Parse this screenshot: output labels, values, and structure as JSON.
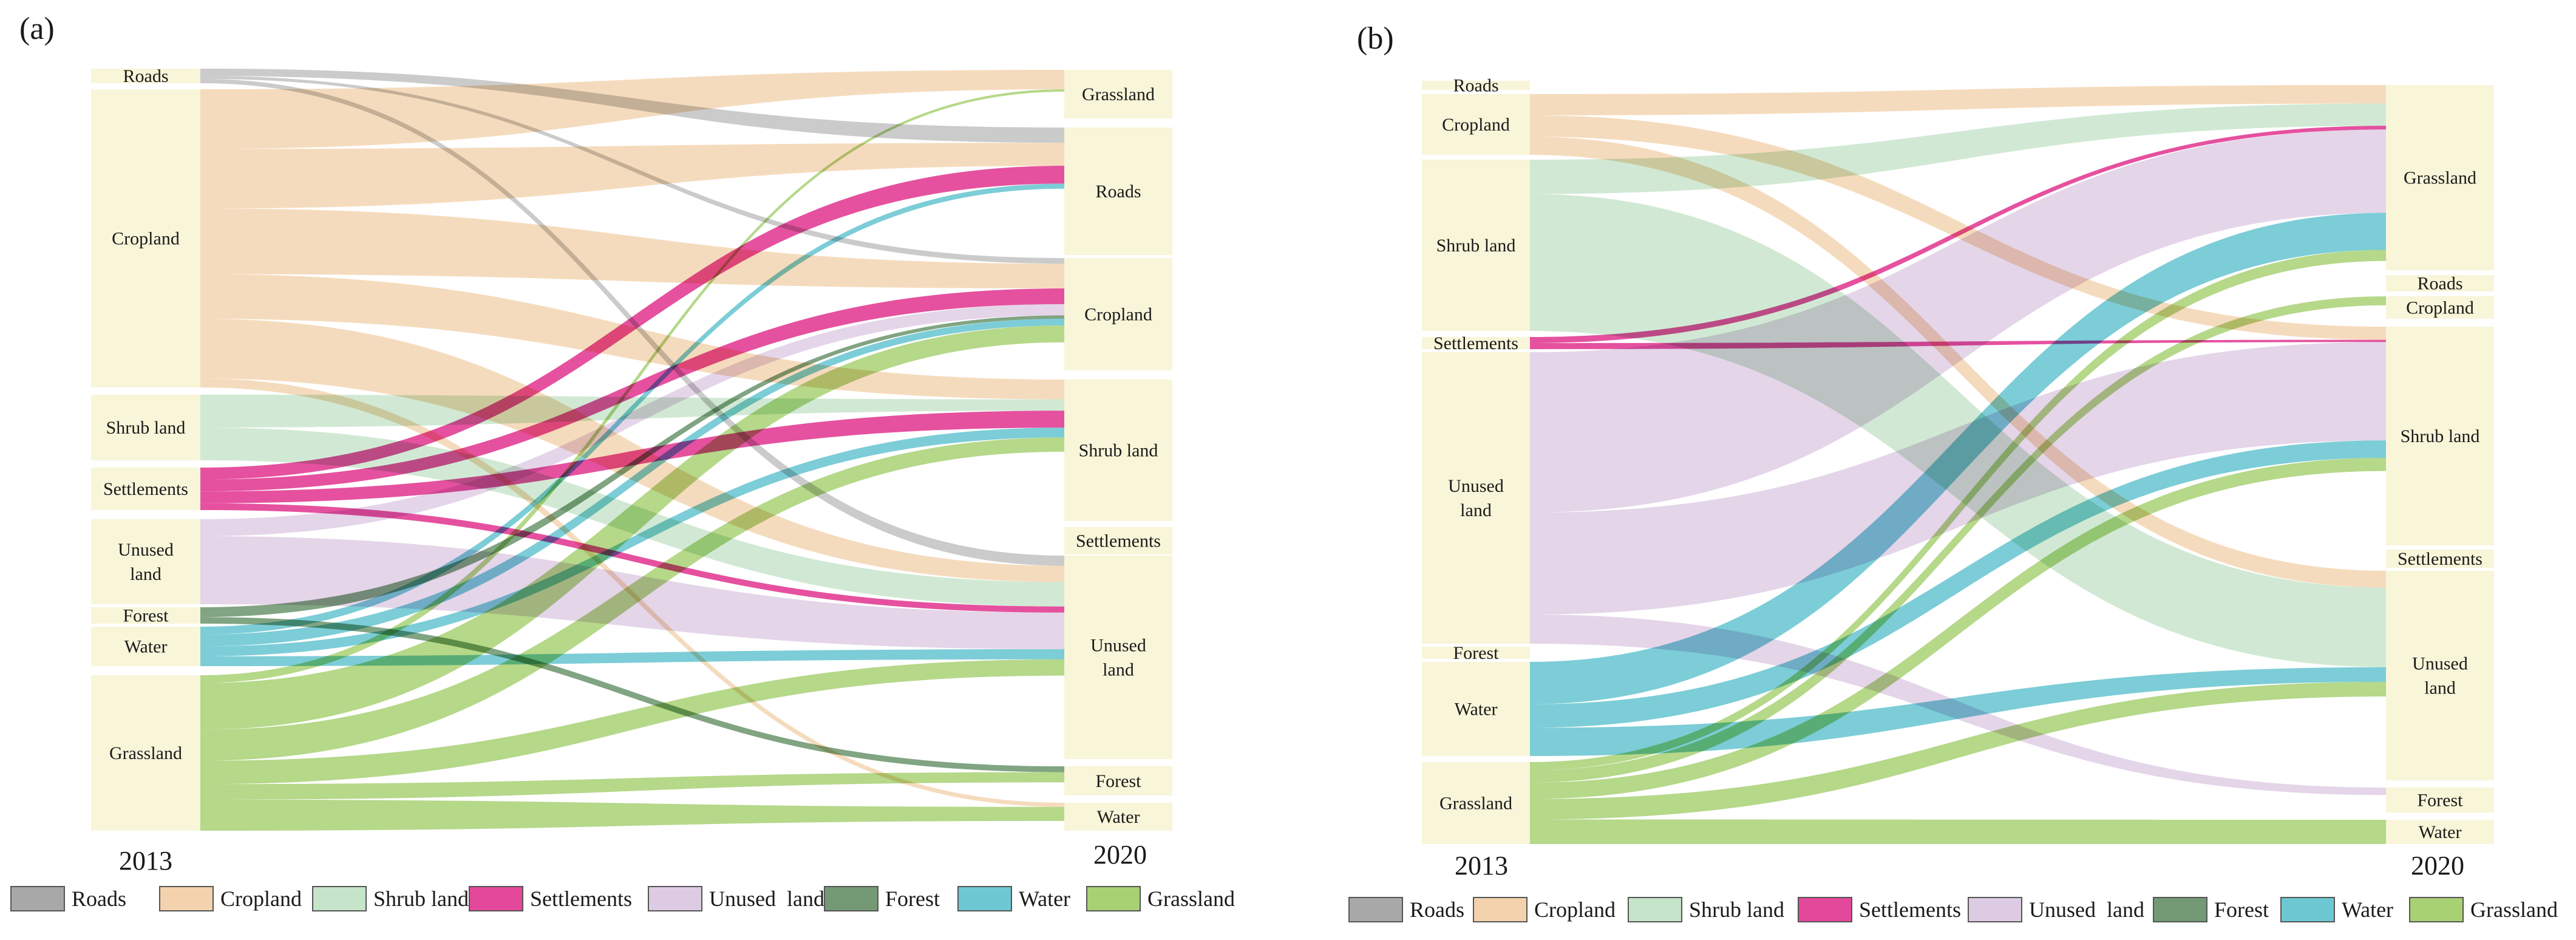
{
  "colors": {
    "Roads": "#a8a8a8",
    "Cropland": "#f3d2ad",
    "Shrub land": "#c5e4c9",
    "Settlements": "#e4489a",
    "Unused  land": "#ddcbe4",
    "Forest": "#739a74",
    "Water": "#6ec8d3",
    "Grassland": "#a8d174"
  },
  "legend": [
    {
      "label": "Roads",
      "color": "#a8a8a8"
    },
    {
      "label": "Cropland",
      "color": "#f3d2ad"
    },
    {
      "label": "Shrub land",
      "color": "#c5e4c9"
    },
    {
      "label": "Settlements",
      "color": "#e4489a"
    },
    {
      "label": "Unused  land",
      "color": "#ddcbe4"
    },
    {
      "label": "Forest",
      "color": "#739a74"
    },
    {
      "label": "Water",
      "color": "#6ec8d3"
    },
    {
      "label": "Grassland",
      "color": "#a8d174"
    }
  ],
  "panels": [
    {
      "label": "(a)",
      "left_year": "2013",
      "right_year": "2020",
      "left_nodes": [
        {
          "name": "Roads",
          "label": [
            "Roads"
          ]
        },
        {
          "name": "Cropland",
          "label": [
            "Cropland"
          ]
        },
        {
          "name": "Shrub land",
          "label": [
            "Shrub land"
          ]
        },
        {
          "name": "Settlements",
          "label": [
            "Settlements"
          ]
        },
        {
          "name": "Unused land",
          "label": [
            "Unused",
            "land"
          ]
        },
        {
          "name": "Forest",
          "label": [
            "Forest"
          ]
        },
        {
          "name": "Water",
          "label": [
            "Water"
          ]
        },
        {
          "name": "Grassland",
          "label": [
            "Grassland"
          ]
        }
      ],
      "right_nodes": [
        {
          "name": "Grassland",
          "label": [
            "Grassland"
          ]
        },
        {
          "name": "Roads",
          "label": [
            "Roads"
          ]
        },
        {
          "name": "Cropland",
          "label": [
            "Cropland"
          ]
        },
        {
          "name": "Shrub land",
          "label": [
            "Shrub land"
          ]
        },
        {
          "name": "Settlements",
          "label": [
            "Settlements"
          ]
        },
        {
          "name": "Unused land",
          "label": [
            "Unused",
            "land"
          ]
        },
        {
          "name": "Forest",
          "label": [
            "Forest"
          ]
        },
        {
          "name": "Water",
          "label": [
            "Water"
          ]
        }
      ]
    },
    {
      "label": "(b)",
      "left_year": "2013",
      "right_year": "2020",
      "left_nodes": [
        {
          "name": "Roads",
          "label": [
            "Roads"
          ]
        },
        {
          "name": "Cropland",
          "label": [
            "Cropland"
          ]
        },
        {
          "name": "Shrub land",
          "label": [
            "Shrub land"
          ]
        },
        {
          "name": "Settlements",
          "label": [
            "Settlements"
          ]
        },
        {
          "name": "Unused land",
          "label": [
            "Unused",
            "land"
          ]
        },
        {
          "name": "Forest",
          "label": [
            "Forest"
          ]
        },
        {
          "name": "Water",
          "label": [
            "Water"
          ]
        },
        {
          "name": "Grassland",
          "label": [
            "Grassland"
          ]
        }
      ],
      "right_nodes": [
        {
          "name": "Grassland",
          "label": [
            "Grassland"
          ]
        },
        {
          "name": "Roads",
          "label": [
            "Roads"
          ]
        },
        {
          "name": "Cropland",
          "label": [
            "Cropland"
          ]
        },
        {
          "name": "Shrub land",
          "label": [
            "Shrub land"
          ]
        },
        {
          "name": "Settlements",
          "label": [
            "Settlements"
          ]
        },
        {
          "name": "Unused land",
          "label": [
            "Unused",
            "land"
          ]
        },
        {
          "name": "Forest",
          "label": [
            "Forest"
          ]
        },
        {
          "name": "Water",
          "label": [
            "Water"
          ]
        }
      ]
    }
  ]
}
